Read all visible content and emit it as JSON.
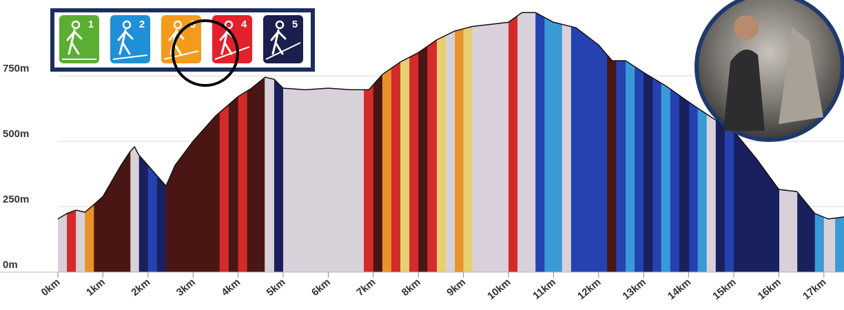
{
  "chart_data": {
    "type": "area",
    "x": [
      0,
      0.2,
      0.4,
      0.6,
      0.8,
      1.0,
      1.4,
      1.6,
      1.7,
      1.8,
      2.0,
      2.4,
      2.6,
      3.0,
      3.5,
      4.0,
      4.3,
      4.6,
      4.8,
      5.0,
      5.5,
      6.0,
      6.5,
      6.9,
      7.2,
      7.6,
      8.0,
      8.4,
      8.8,
      9.2,
      9.6,
      10.0,
      10.3,
      10.6,
      11.0,
      11.5,
      12.0,
      12.3,
      12.6,
      13.0,
      13.5,
      14.0,
      14.5,
      15.0,
      15.5,
      16.0,
      16.4,
      16.8,
      17.1,
      17.45
    ],
    "values": [
      203,
      224,
      237,
      229,
      258,
      289,
      408,
      460,
      479,
      447,
      408,
      329,
      408,
      500,
      597,
      671,
      703,
      745,
      737,
      703,
      697,
      703,
      697,
      697,
      755,
      803,
      839,
      887,
      921,
      939,
      947,
      955,
      992,
      992,
      955,
      934,
      868,
      808,
      808,
      763,
      711,
      650,
      592,
      539,
      434,
      316,
      308,
      224,
      203,
      211
    ],
    "bands": [
      {
        "from": 0,
        "to": 0.2,
        "color": "#d9d1d9"
      },
      {
        "from": 0.2,
        "to": 0.4,
        "color": "#d42a2a"
      },
      {
        "from": 0.4,
        "to": 0.6,
        "color": "#d9d1d9"
      },
      {
        "from": 0.6,
        "to": 0.8,
        "color": "#e8922a"
      },
      {
        "from": 0.8,
        "to": 1.61,
        "color": "#4a1614"
      },
      {
        "from": 1.61,
        "to": 1.8,
        "color": "#d9d1d9"
      },
      {
        "from": 1.8,
        "to": 2.0,
        "color": "#1a1f5e"
      },
      {
        "from": 2.0,
        "to": 2.2,
        "color": "#2442b0"
      },
      {
        "from": 2.2,
        "to": 2.4,
        "color": "#1a1f5e"
      },
      {
        "from": 2.4,
        "to": 3.59,
        "color": "#4a1614"
      },
      {
        "from": 3.59,
        "to": 3.79,
        "color": "#d42a2a"
      },
      {
        "from": 3.79,
        "to": 4.0,
        "color": "#4a1614"
      },
      {
        "from": 4.0,
        "to": 4.2,
        "color": "#d42a2a"
      },
      {
        "from": 4.2,
        "to": 4.59,
        "color": "#4a1614"
      },
      {
        "from": 4.59,
        "to": 4.8,
        "color": "#d9d1d9"
      },
      {
        "from": 4.8,
        "to": 5.0,
        "color": "#1a1f5e"
      },
      {
        "from": 5.0,
        "to": 6.79,
        "color": "#d9d1d9"
      },
      {
        "from": 6.79,
        "to": 7.0,
        "color": "#d42a2a"
      },
      {
        "from": 7.0,
        "to": 7.2,
        "color": "#4a1614"
      },
      {
        "from": 7.2,
        "to": 7.4,
        "color": "#e8922a"
      },
      {
        "from": 7.4,
        "to": 7.6,
        "color": "#d42a2a"
      },
      {
        "from": 7.6,
        "to": 7.8,
        "color": "#e8d070"
      },
      {
        "from": 7.8,
        "to": 8.0,
        "color": "#d42a2a"
      },
      {
        "from": 8.0,
        "to": 8.2,
        "color": "#4a1614"
      },
      {
        "from": 8.2,
        "to": 8.41,
        "color": "#d42a2a"
      },
      {
        "from": 8.41,
        "to": 8.61,
        "color": "#e8d070"
      },
      {
        "from": 8.61,
        "to": 8.81,
        "color": "#d9d1d9"
      },
      {
        "from": 8.81,
        "to": 9.0,
        "color": "#e8922a"
      },
      {
        "from": 9.0,
        "to": 9.2,
        "color": "#e8d070"
      },
      {
        "from": 9.2,
        "to": 10.0,
        "color": "#d9d1d9"
      },
      {
        "from": 10.0,
        "to": 10.2,
        "color": "#d42a2a"
      },
      {
        "from": 10.2,
        "to": 10.6,
        "color": "#d9d1d9"
      },
      {
        "from": 10.6,
        "to": 10.8,
        "color": "#2442b0"
      },
      {
        "from": 10.8,
        "to": 11.19,
        "color": "#3a9ad8"
      },
      {
        "from": 11.19,
        "to": 11.39,
        "color": "#d9d1d9"
      },
      {
        "from": 11.39,
        "to": 12.19,
        "color": "#2442b0"
      },
      {
        "from": 12.19,
        "to": 12.39,
        "color": "#4a1614"
      },
      {
        "from": 12.39,
        "to": 12.6,
        "color": "#2442b0"
      },
      {
        "from": 12.6,
        "to": 12.8,
        "color": "#3a9ad8"
      },
      {
        "from": 12.8,
        "to": 13.0,
        "color": "#2442b0"
      },
      {
        "from": 13.0,
        "to": 13.2,
        "color": "#1a1f5e"
      },
      {
        "from": 13.2,
        "to": 13.39,
        "color": "#2442b0"
      },
      {
        "from": 13.39,
        "to": 13.59,
        "color": "#3a9ad8"
      },
      {
        "from": 13.59,
        "to": 13.79,
        "color": "#2442b0"
      },
      {
        "from": 13.79,
        "to": 14.01,
        "color": "#1a1f5e"
      },
      {
        "from": 14.01,
        "to": 14.2,
        "color": "#2442b0"
      },
      {
        "from": 14.2,
        "to": 14.4,
        "color": "#3a9ad8"
      },
      {
        "from": 14.4,
        "to": 14.6,
        "color": "#d9d1d9"
      },
      {
        "from": 14.6,
        "to": 14.8,
        "color": "#1a1f5e"
      },
      {
        "from": 14.8,
        "to": 15.0,
        "color": "#2442b0"
      },
      {
        "from": 15.0,
        "to": 16.01,
        "color": "#1a1f5e"
      },
      {
        "from": 16.01,
        "to": 16.41,
        "color": "#d9d1d9"
      },
      {
        "from": 16.41,
        "to": 16.8,
        "color": "#1a1f5e"
      },
      {
        "from": 16.8,
        "to": 17.0,
        "color": "#3a9ad8"
      },
      {
        "from": 17.0,
        "to": 17.25,
        "color": "#d9d1d9"
      },
      {
        "from": 17.25,
        "to": 17.45,
        "color": "#3a9ad8"
      }
    ],
    "xlim": [
      0,
      17.45
    ],
    "ylim": [
      0,
      1040
    ],
    "xticks": [
      {
        "value": 0,
        "label": "0km"
      },
      {
        "value": 1,
        "label": "1km"
      },
      {
        "value": 2,
        "label": "2km"
      },
      {
        "value": 3,
        "label": "3km"
      },
      {
        "value": 4,
        "label": "4km"
      },
      {
        "value": 5,
        "label": "5km"
      },
      {
        "value": 6,
        "label": "6km"
      },
      {
        "value": 7,
        "label": "7km"
      },
      {
        "value": 8,
        "label": "8km"
      },
      {
        "value": 9,
        "label": "9km"
      },
      {
        "value": 10,
        "label": "10km"
      },
      {
        "value": 11,
        "label": "11km"
      },
      {
        "value": 12,
        "label": "12km"
      },
      {
        "value": 13,
        "label": "13km"
      },
      {
        "value": 14,
        "label": "14km"
      },
      {
        "value": 15,
        "label": "15km"
      },
      {
        "value": 16,
        "label": "16km"
      },
      {
        "value": 17,
        "label": "17km"
      }
    ],
    "yticks": [
      {
        "value": 0,
        "label": "0m"
      },
      {
        "value": 250,
        "label": "250m"
      },
      {
        "value": 500,
        "label": "500m"
      },
      {
        "value": 750,
        "label": "750m"
      }
    ],
    "grid": true,
    "legend": [
      {
        "label": "1",
        "color": "#5aae32"
      },
      {
        "label": "2",
        "color": "#1f8fd6"
      },
      {
        "label": "3",
        "color": "#f49b1c"
      },
      {
        "label": "4",
        "color": "#e3212a"
      },
      {
        "label": "5",
        "color": "#1b1f4e"
      }
    ]
  }
}
